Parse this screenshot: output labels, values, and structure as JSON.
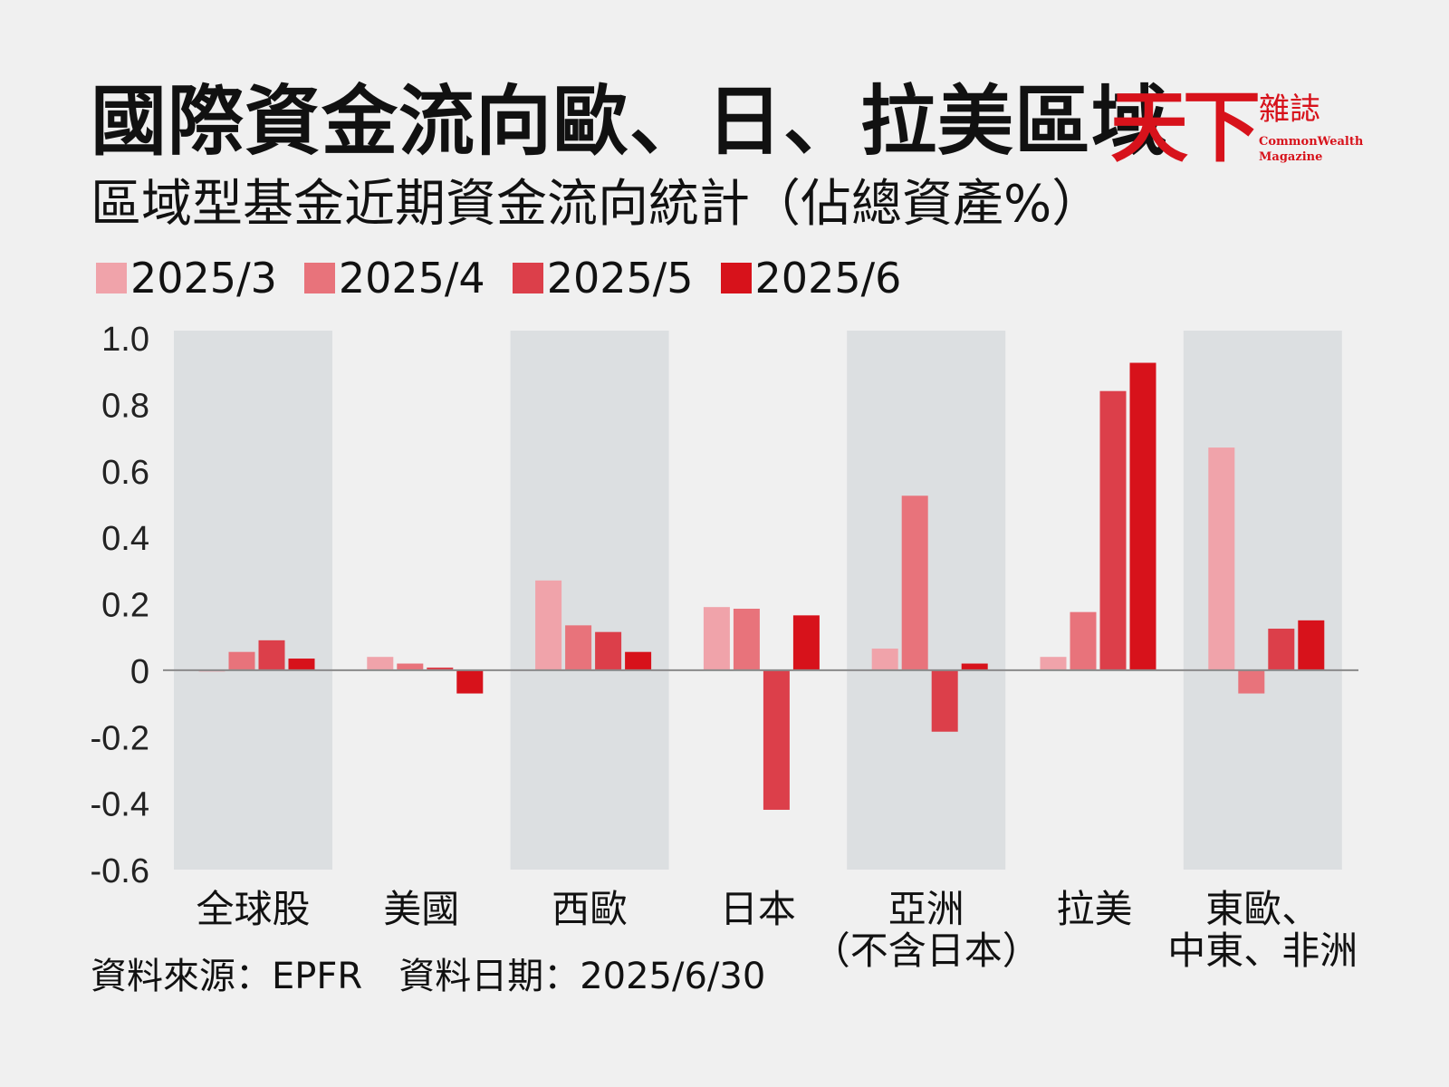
{
  "header": {
    "title": "國際資金流向歐、日、拉美區域",
    "subtitle": "區域型基金近期資金流向統計（佔總資產%）"
  },
  "logo": {
    "mark": "天下",
    "sub": "雜誌",
    "en": "CommonWealth\nMagazine"
  },
  "footer": {
    "text": "資料來源：EPFR　資料日期：2025/6/30"
  },
  "chart_data": {
    "type": "bar",
    "title": "國際資金流向歐、日、拉美區域",
    "subtitle": "區域型基金近期資金流向統計（佔總資產%）",
    "categories": [
      "全球股",
      "美國",
      "西歐",
      "日本",
      "亞洲\n（不含日本）",
      "拉美",
      "東歐、\n中東、非洲"
    ],
    "series": [
      {
        "name": "2025/3",
        "color": "#f0a3aa",
        "values": [
          0.0,
          0.04,
          0.27,
          0.19,
          0.065,
          0.04,
          0.67
        ]
      },
      {
        "name": "2025/4",
        "color": "#e8737b",
        "values": [
          0.055,
          0.02,
          0.135,
          0.185,
          0.525,
          0.175,
          -0.07
        ]
      },
      {
        "name": "2025/5",
        "color": "#dc3f4a",
        "values": [
          0.09,
          0.008,
          0.115,
          -0.42,
          -0.185,
          0.84,
          0.125
        ]
      },
      {
        "name": "2025/6",
        "color": "#d7121b",
        "values": [
          0.035,
          -0.07,
          0.055,
          0.165,
          0.02,
          0.925,
          0.15
        ]
      }
    ],
    "ylim": [
      -0.6,
      1.0
    ],
    "yticks": [
      "1.0",
      "0.8",
      "0.6",
      "0.4",
      "0.2",
      "0",
      "-0.2",
      "-0.4",
      "-0.6"
    ],
    "shaded_categories": [
      0,
      2,
      4,
      6
    ],
    "legend": "top-left",
    "grid": false
  },
  "colors": {
    "brand_red": "#d7121b",
    "shade": "#dcdfe1",
    "background": "#f0f0f0"
  }
}
